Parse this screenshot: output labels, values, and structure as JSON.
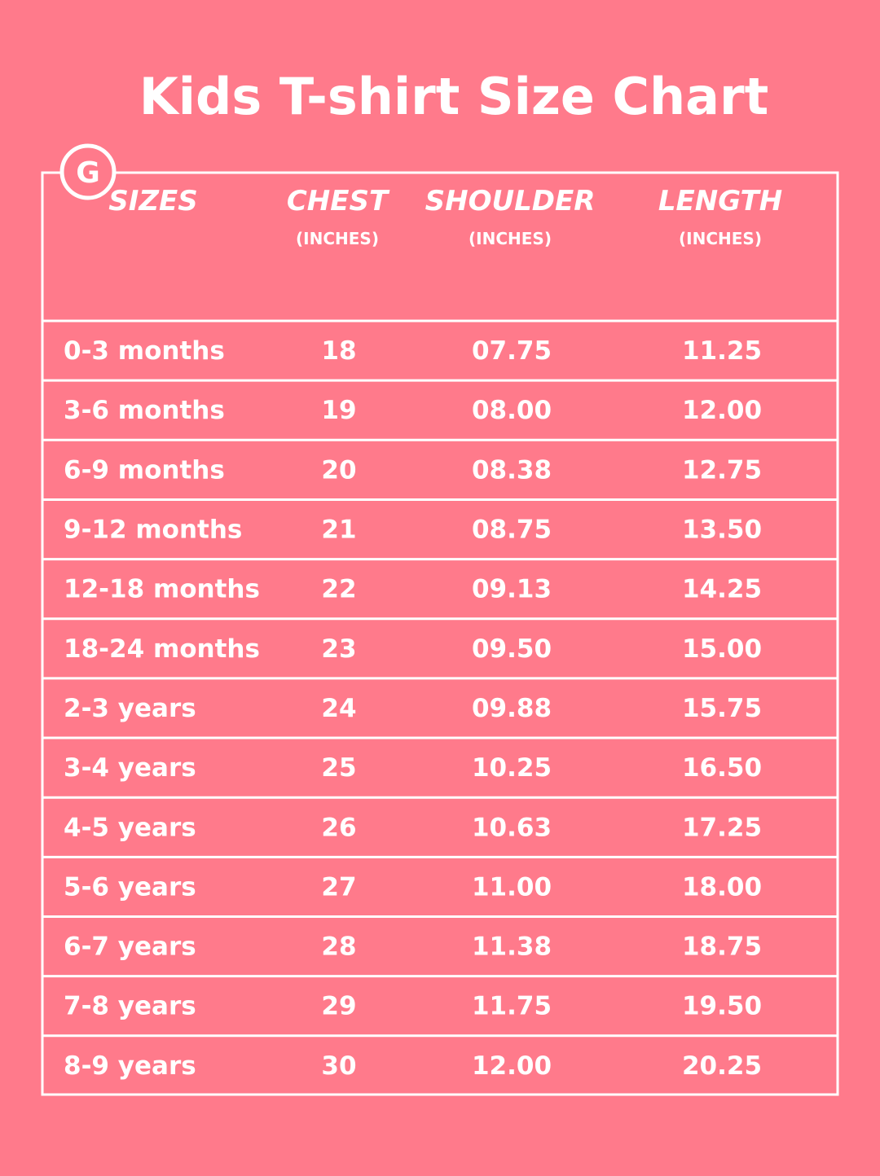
{
  "header": {
    "title": "Kids T-shirt Size Chart",
    "logo": "G"
  },
  "table": {
    "columns": [
      {
        "label": "SIZES"
      },
      {
        "label": "CHEST",
        "unit": "(INCHES)"
      },
      {
        "label": "SHOULDER",
        "unit": "(INCHES)"
      },
      {
        "label": "LENGTH",
        "unit": "(INCHES)"
      }
    ],
    "rows": [
      [
        "0-3 months",
        "18",
        "07.75",
        "11.25"
      ],
      [
        "3-6 months",
        "19",
        "08.00",
        "12.00"
      ],
      [
        "6-9 months",
        "20",
        "08.38",
        "12.75"
      ],
      [
        "9-12 months",
        "21",
        "08.75",
        "13.50"
      ],
      [
        "12-18 months",
        "22",
        "09.13",
        "14.25"
      ],
      [
        "18-24 months",
        "23",
        "09.50",
        "15.00"
      ],
      [
        "2-3 years",
        "24",
        "09.88",
        "15.75"
      ],
      [
        "3-4 years",
        "25",
        "10.25",
        "16.50"
      ],
      [
        "4-5 years",
        "26",
        "10.63",
        "17.25"
      ],
      [
        "5-6 years",
        "27",
        "11.00",
        "18.00"
      ],
      [
        "6-7 years",
        "28",
        "11.38",
        "18.75"
      ],
      [
        "7-8 years",
        "29",
        "11.75",
        "19.50"
      ],
      [
        "8-9 years",
        "30",
        "12.00",
        "20.25"
      ]
    ]
  }
}
